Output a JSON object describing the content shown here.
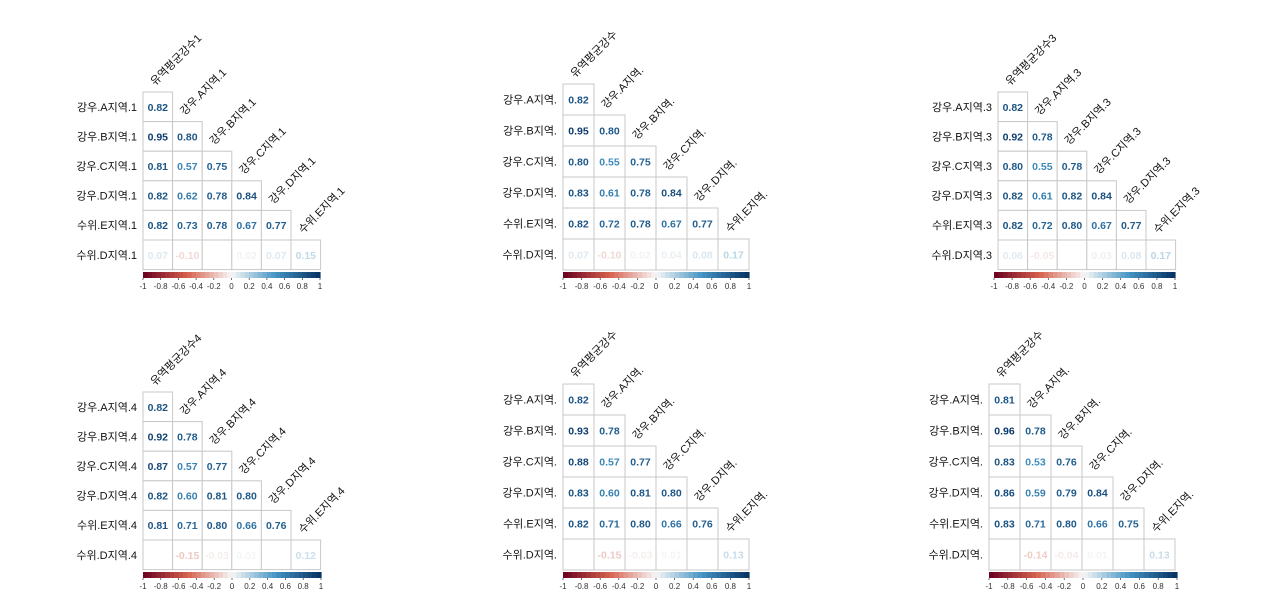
{
  "colors": {
    "negative_end": "#67001f",
    "negative_mid": "#d6604d",
    "zero": "#f7f7f7",
    "positive_mid": "#4393c3",
    "positive_end": "#053061",
    "cell_border": "#c8c8c8"
  },
  "colorbar": {
    "ticks": [
      "-1",
      "-0.8",
      "-0.6",
      "-0.4",
      "-0.2",
      "0",
      "0.2",
      "0.4",
      "0.6",
      "0.8",
      "1"
    ],
    "range": [
      -1,
      1
    ]
  },
  "chart_data": [
    {
      "type": "heatmap",
      "row_labels": [
        "강우.A지역.1",
        "강우.B지역.1",
        "강우.C지역.1",
        "강우.D지역.1",
        "수위.E지역.1",
        "수위.D지역.1"
      ],
      "col_labels": [
        "유역평균강수1",
        "강우.A지역.1",
        "강우.B지역.1",
        "강우.C지역.1",
        "강우.D지역.1",
        "수위.E지역.1"
      ],
      "values": [
        [
          0.82
        ],
        [
          0.95,
          0.8
        ],
        [
          0.81,
          0.57,
          0.75
        ],
        [
          0.82,
          0.62,
          0.78,
          0.84
        ],
        [
          0.82,
          0.73,
          0.78,
          0.67,
          0.77
        ],
        [
          0.07,
          -0.1,
          0.0,
          0.02,
          0.07,
          0.15
        ]
      ],
      "labels": [
        [
          "0.82"
        ],
        [
          "0.95",
          "0.80"
        ],
        [
          "0.81",
          "0.57",
          "0.75"
        ],
        [
          "0.82",
          "0.62",
          "0.78",
          "0.84"
        ],
        [
          "0.82",
          "0.73",
          "0.78",
          "0.67",
          "0.77"
        ],
        [
          "0.07",
          "-0.10",
          "",
          "0.02",
          "0.07",
          "0.15"
        ]
      ]
    },
    {
      "type": "heatmap",
      "row_labels": [
        "강우.A지역.",
        "강우.B지역.",
        "강우.C지역.",
        "강우.D지역.",
        "수위.E지역.",
        "수위.D지역."
      ],
      "col_labels": [
        "유역평균강수",
        "강우.A지역.",
        "강우.B지역.",
        "강우.C지역.",
        "강우.D지역.",
        "수위.E지역."
      ],
      "values": [
        [
          0.82
        ],
        [
          0.95,
          0.8
        ],
        [
          0.8,
          0.55,
          0.75
        ],
        [
          0.83,
          0.61,
          0.78,
          0.84
        ],
        [
          0.82,
          0.72,
          0.78,
          0.67,
          0.77
        ],
        [
          0.07,
          -0.1,
          0.02,
          0.04,
          0.08,
          0.17
        ]
      ],
      "labels": [
        [
          "0.82"
        ],
        [
          "0.95",
          "0.80"
        ],
        [
          "0.80",
          "0.55",
          "0.75"
        ],
        [
          "0.83",
          "0.61",
          "0.78",
          "0.84"
        ],
        [
          "0.82",
          "0.72",
          "0.78",
          "0.67",
          "0.77"
        ],
        [
          "0.07",
          "-0.10",
          "0.02",
          "0.04",
          "0.08",
          "0.17"
        ]
      ]
    },
    {
      "type": "heatmap",
      "row_labels": [
        "강우.A지역.3",
        "강우.B지역.3",
        "강우.C지역.3",
        "강우.D지역.3",
        "수위.E지역.3",
        "수위.D지역.3"
      ],
      "col_labels": [
        "유역평균강수3",
        "강우.A지역.3",
        "강우.B지역.3",
        "강우.C지역.3",
        "강우.D지역.3",
        "수위.E지역.3"
      ],
      "values": [
        [
          0.82
        ],
        [
          0.92,
          0.78
        ],
        [
          0.8,
          0.55,
          0.78
        ],
        [
          0.82,
          0.61,
          0.82,
          0.84
        ],
        [
          0.82,
          0.72,
          0.8,
          0.67,
          0.77
        ],
        [
          0.06,
          -0.05,
          0.0,
          0.03,
          0.08,
          0.17
        ]
      ],
      "labels": [
        [
          "0.82"
        ],
        [
          "0.92",
          "0.78"
        ],
        [
          "0.80",
          "0.55",
          "0.78"
        ],
        [
          "0.82",
          "0.61",
          "0.82",
          "0.84"
        ],
        [
          "0.82",
          "0.72",
          "0.80",
          "0.67",
          "0.77"
        ],
        [
          "0.06",
          "-0.05",
          "",
          "0.03",
          "0.08",
          "0.17"
        ]
      ]
    },
    {
      "type": "heatmap",
      "row_labels": [
        "강우.A지역.4",
        "강우.B지역.4",
        "강우.C지역.4",
        "강우.D지역.4",
        "수위.E지역.4",
        "수위.D지역.4"
      ],
      "col_labels": [
        "유역평균강수4",
        "강우.A지역.4",
        "강우.B지역.4",
        "강우.C지역.4",
        "강우.D지역.4",
        "수위.E지역.4"
      ],
      "values": [
        [
          0.82
        ],
        [
          0.92,
          0.78
        ],
        [
          0.87,
          0.57,
          0.77
        ],
        [
          0.82,
          0.6,
          0.81,
          0.8
        ],
        [
          0.81,
          0.71,
          0.8,
          0.66,
          0.76
        ],
        [
          0.0,
          -0.15,
          -0.03,
          0.01,
          0.0,
          0.12
        ]
      ],
      "labels": [
        [
          "0.82"
        ],
        [
          "0.92",
          "0.78"
        ],
        [
          "0.87",
          "0.57",
          "0.77"
        ],
        [
          "0.82",
          "0.60",
          "0.81",
          "0.80"
        ],
        [
          "0.81",
          "0.71",
          "0.80",
          "0.66",
          "0.76"
        ],
        [
          "",
          "-0.15",
          "-0.03",
          "0.01",
          "",
          "0.12"
        ]
      ]
    },
    {
      "type": "heatmap",
      "row_labels": [
        "강우.A지역.",
        "강우.B지역.",
        "강우.C지역.",
        "강우.D지역.",
        "수위.E지역.",
        "수위.D지역."
      ],
      "col_labels": [
        "유역평균강수",
        "강우.A지역.",
        "강우.B지역.",
        "강우.C지역.",
        "강우.D지역.",
        "수위.E지역."
      ],
      "values": [
        [
          0.82
        ],
        [
          0.93,
          0.78
        ],
        [
          0.88,
          0.57,
          0.77
        ],
        [
          0.83,
          0.6,
          0.81,
          0.8
        ],
        [
          0.82,
          0.71,
          0.8,
          0.66,
          0.76
        ],
        [
          0.0,
          -0.15,
          -0.03,
          0.01,
          0.0,
          0.13
        ]
      ],
      "labels": [
        [
          "0.82"
        ],
        [
          "0.93",
          "0.78"
        ],
        [
          "0.88",
          "0.57",
          "0.77"
        ],
        [
          "0.83",
          "0.60",
          "0.81",
          "0.80"
        ],
        [
          "0.82",
          "0.71",
          "0.80",
          "0.66",
          "0.76"
        ],
        [
          "",
          "-0.15",
          "-0.03",
          "0.01",
          "",
          "0.13"
        ]
      ]
    },
    {
      "type": "heatmap",
      "row_labels": [
        "강우.A지역.",
        "강우.B지역.",
        "강우.C지역.",
        "강우.D지역.",
        "수위.E지역.",
        "수위.D지역."
      ],
      "col_labels": [
        "유역평균강수",
        "강우.A지역.",
        "강우.B지역.",
        "강우.C지역.",
        "강우.D지역.",
        "수위.E지역."
      ],
      "values": [
        [
          0.81
        ],
        [
          0.96,
          0.78
        ],
        [
          0.83,
          0.53,
          0.76
        ],
        [
          0.86,
          0.59,
          0.79,
          0.84
        ],
        [
          0.83,
          0.71,
          0.8,
          0.66,
          0.75
        ],
        [
          0.0,
          -0.14,
          -0.04,
          0.01,
          0.0,
          0.13
        ]
      ],
      "labels": [
        [
          "0.81"
        ],
        [
          "0.96",
          "0.78"
        ],
        [
          "0.83",
          "0.53",
          "0.76"
        ],
        [
          "0.86",
          "0.59",
          "0.79",
          "0.84"
        ],
        [
          "0.83",
          "0.71",
          "0.80",
          "0.66",
          "0.75"
        ],
        [
          "",
          "-0.14",
          "-0.04",
          "0.01",
          "",
          "0.13"
        ]
      ]
    }
  ]
}
